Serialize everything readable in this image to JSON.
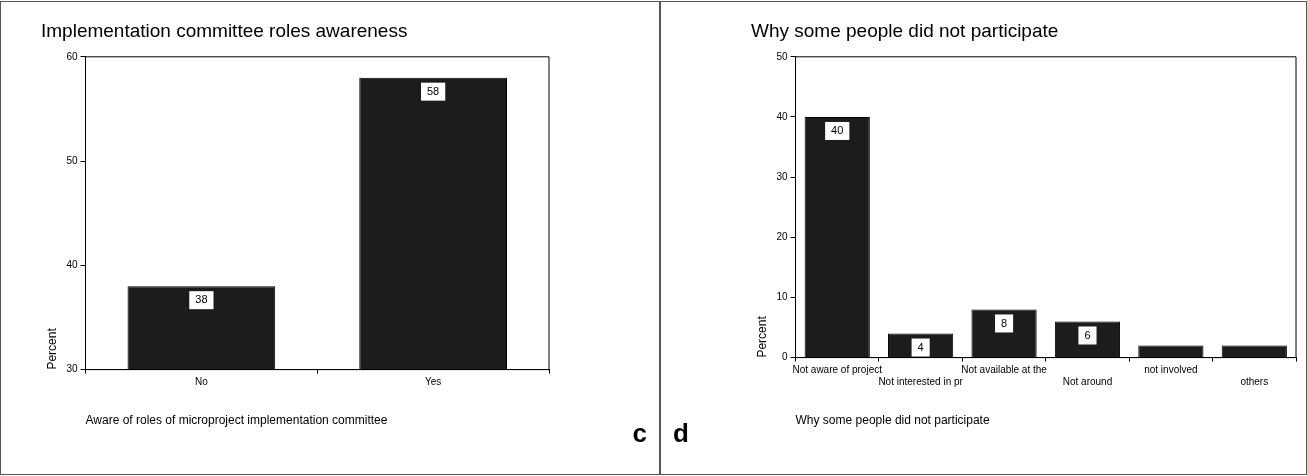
{
  "chart_data": [
    {
      "type": "bar",
      "title": "Implementation committee roles awareness",
      "xlabel": "Aware of roles of microproject implementation committee",
      "ylabel": "Percent",
      "categories": [
        "No",
        "Yes"
      ],
      "values": [
        38,
        58
      ],
      "color": "#1c1c1c",
      "ylim": [
        30,
        60
      ],
      "yticks": [
        30,
        40,
        50,
        60
      ],
      "data_labels": true,
      "legend": false,
      "annotations": [
        "c"
      ]
    },
    {
      "type": "bar",
      "title": "Why some people did not participate",
      "xlabel": "Why some people did not participate",
      "ylabel": "Percent",
      "categories": [
        "Not aware of project",
        "Not interested in pr",
        "Not available at the",
        "Not around",
        "not involved",
        "others"
      ],
      "values": [
        40,
        4,
        8,
        6,
        2,
        2
      ],
      "value_labels": [
        "40",
        "4",
        "8",
        "6",
        null,
        null
      ],
      "color": "#1c1c1c",
      "ylim": [
        0,
        50
      ],
      "yticks": [
        0,
        10,
        20,
        30,
        40,
        50
      ],
      "legend": false,
      "annotations": [
        "d"
      ]
    }
  ]
}
